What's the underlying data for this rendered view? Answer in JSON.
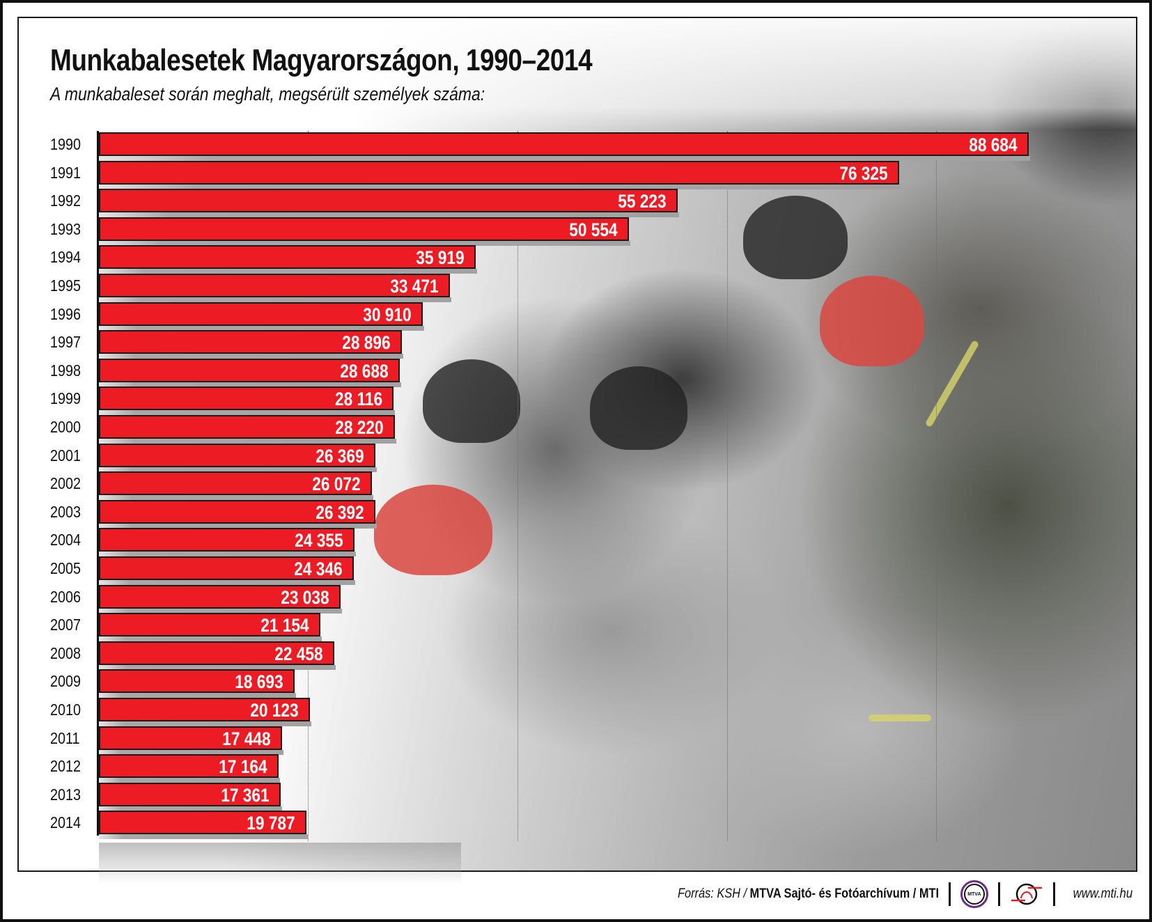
{
  "header": {
    "title": "Munkabalesetek Magyarországon, 1990–2014",
    "subtitle": "A munkabaleset során meghalt, megsérült személyek száma:"
  },
  "colors": {
    "bar": "#ED1C24",
    "bar_border": "#1A1A1A",
    "value_text": "#FFFFFF",
    "mtva_ring": "#6A2C86",
    "mti_accent": "#E41E26"
  },
  "chart_data": {
    "type": "bar",
    "orientation": "horizontal",
    "title": "Munkabalesetek Magyarországon, 1990–2014",
    "subtitle": "A munkabaleset során meghalt, megsérült személyek száma:",
    "xlabel": "",
    "ylabel": "",
    "categories": [
      "1990",
      "1991",
      "1992",
      "1993",
      "1994",
      "1995",
      "1996",
      "1997",
      "1998",
      "1999",
      "2000",
      "2001",
      "2002",
      "2003",
      "2004",
      "2005",
      "2006",
      "2007",
      "2008",
      "2009",
      "2010",
      "2011",
      "2012",
      "2013",
      "2014"
    ],
    "values": [
      88684,
      76325,
      55223,
      50554,
      35919,
      33471,
      30910,
      28896,
      28688,
      28116,
      28220,
      26369,
      26072,
      26392,
      24355,
      24346,
      23038,
      21154,
      22458,
      18693,
      20123,
      17448,
      17164,
      17361,
      19787
    ],
    "value_labels": [
      "88 684",
      "76 325",
      "55 223",
      "50 554",
      "35 919",
      "33 471",
      "30 910",
      "28 896",
      "28 688",
      "28 116",
      "28 220",
      "26 369",
      "26 072",
      "26 392",
      "24 355",
      "24 346",
      "23 038",
      "21 154",
      "22 458",
      "18 693",
      "20 123",
      "17 448",
      "17 164",
      "17 361",
      "19 787"
    ],
    "xlim": [
      0,
      90000
    ],
    "gridlines_x": [
      20000,
      40000,
      60000,
      80000
    ],
    "grid": true,
    "legend": null
  },
  "footer": {
    "source_prefix": "Forrás: KSH / ",
    "source_bold": "MTVA Sajtó- és Fotóarchívum / MTI",
    "mtva_logo_text": "MTVA",
    "url": "www.mti.hu"
  }
}
